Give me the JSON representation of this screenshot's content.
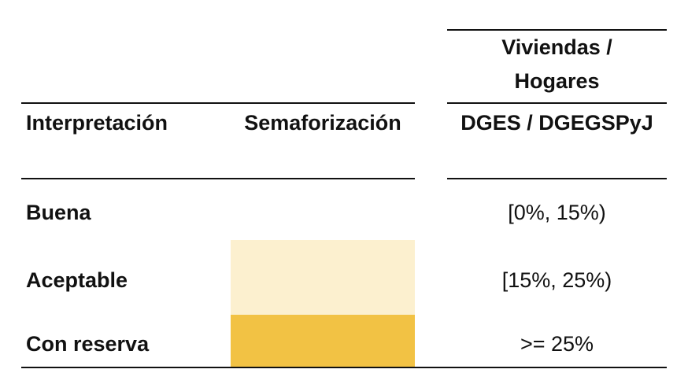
{
  "header": {
    "group_title_line1": "Viviendas /",
    "group_title_line2": "Hogares",
    "col_interpretacion": "Interpretación",
    "col_semaforizacion": "Semaforización",
    "col_dges": "DGES / DGEGSPyJ"
  },
  "rows": [
    {
      "interpretacion": "Buena",
      "rango": "[0%, 15%)",
      "color": "#ffffff"
    },
    {
      "interpretacion": "Aceptable",
      "rango": "[15%, 25%)",
      "color": "#fcf0cf"
    },
    {
      "interpretacion": "Con reserva",
      "rango": ">= 25%",
      "color": "#f2c244"
    }
  ]
}
